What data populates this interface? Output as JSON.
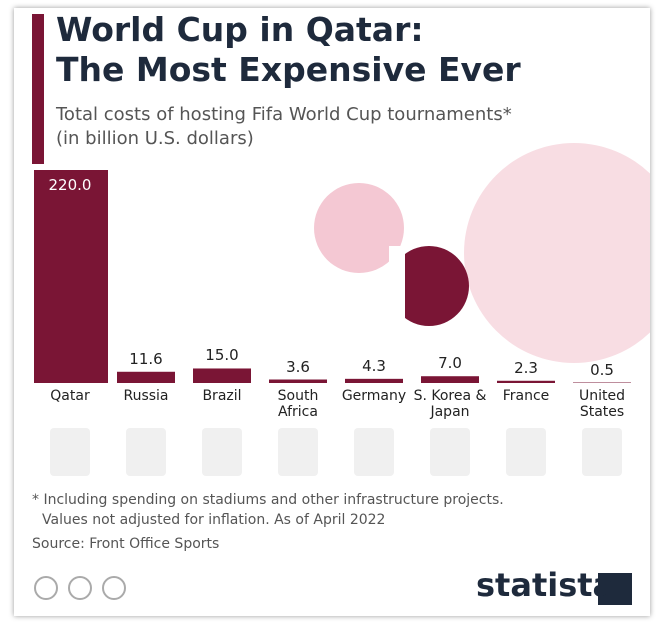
{
  "chart_data": {
    "type": "bar",
    "title": [
      "World Cup in Qatar:",
      "The Most Expensive Ever"
    ],
    "subtitle": [
      "Total costs of hosting Fifa World Cup tournaments*",
      "(in billion U.S. dollars)"
    ],
    "categories": [
      "Qatar",
      "Russia",
      "Brazil",
      "South Africa",
      "Germany",
      "S. Korea & Japan",
      "France",
      "United States"
    ],
    "values": [
      220,
      11.6,
      15,
      3.6,
      4.3,
      7,
      2.3,
      0.5
    ],
    "value_labels": [
      "220.0",
      "11.6",
      "15.0",
      "3.6",
      "4.3",
      "7.0",
      "2.3",
      "0.5"
    ],
    "color": "#7a1535",
    "note": [
      "* Including spending on stadiums and other infrastructure projects.",
      "Values not adjusted for inflation. As of April 2022"
    ],
    "source": "Source: Front Office Sports",
    "brand": "statista"
  }
}
